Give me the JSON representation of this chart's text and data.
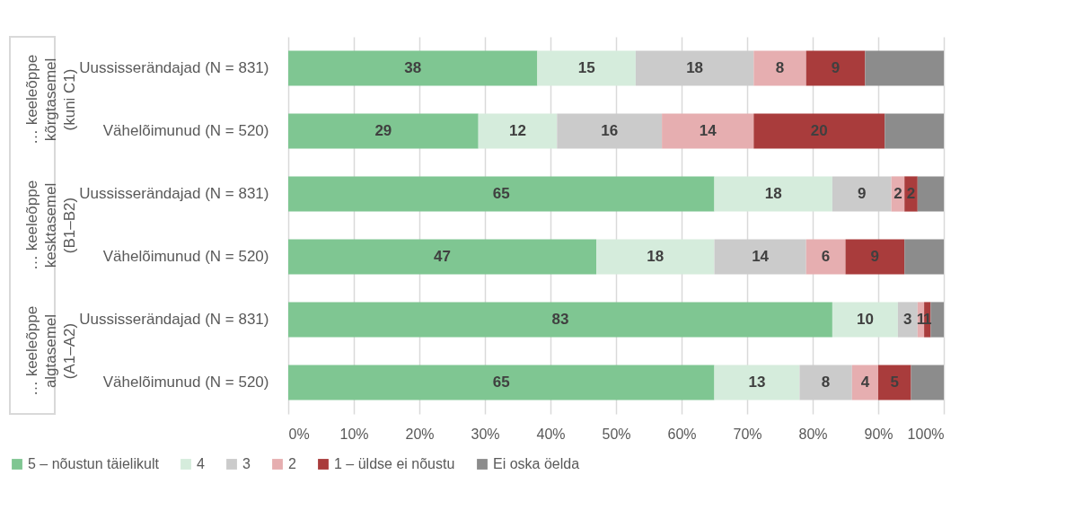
{
  "chart_data": {
    "type": "bar",
    "orientation": "horizontal",
    "stacked": true,
    "categories": [
      "Uussisserändajad (N = 831)",
      "Vähelõimunud (N = 520)",
      "Uussisserändajad (N = 831)",
      "Vähelõimunud (N = 520)",
      "Uussisserändajad (N = 831)",
      "Vähelõimunud (N = 520)"
    ],
    "annotations": [
      "… keeleõppe\nkõrgtasemel\n(kuni C1)",
      "… keeleõppe\nkesktasemel\n(B1–B2)",
      "… keeleõppe\nalgtasemel\n(A1–A2)"
    ],
    "series": [
      {
        "name": "5 – nõustun täielikult",
        "color": "#7fc692",
        "values": [
          38,
          29,
          65,
          47,
          83,
          65
        ],
        "value_labels": [
          "38",
          "29",
          "65",
          "47",
          "83",
          "65"
        ]
      },
      {
        "name": "4",
        "color": "#d5ecdc",
        "values": [
          15,
          12,
          18,
          18,
          10,
          13
        ],
        "value_labels": [
          "15",
          "12",
          "18",
          "18",
          "10",
          "13"
        ]
      },
      {
        "name": "3",
        "color": "#cbcbcb",
        "values": [
          18,
          16,
          9,
          14,
          3,
          8
        ],
        "value_labels": [
          "18",
          "16",
          "9",
          "14",
          "3",
          "8"
        ]
      },
      {
        "name": "2",
        "color": "#e6aeb0",
        "values": [
          8,
          14,
          2,
          6,
          1,
          4
        ],
        "value_labels": [
          "8",
          "14",
          "2",
          "6",
          "1",
          "4"
        ]
      },
      {
        "name": "1 – üldse ei nõustu",
        "color": "#a93c3c",
        "values": [
          9,
          20,
          2,
          9,
          1,
          5
        ],
        "value_labels": [
          "9",
          "20",
          "2",
          "9",
          "1",
          "5"
        ]
      },
      {
        "name": "Ei oska öelda",
        "color": "#8c8c8c",
        "values": [
          12,
          9,
          4,
          6,
          2,
          5
        ],
        "value_labels": [
          null,
          null,
          null,
          null,
          null,
          null
        ]
      }
    ],
    "xlim": [
      0,
      100
    ],
    "xticks": [
      {
        "value": 0,
        "label": "0%"
      },
      {
        "value": 10,
        "label": "10%"
      },
      {
        "value": 20,
        "label": "20%"
      },
      {
        "value": 30,
        "label": "30%"
      },
      {
        "value": 40,
        "label": "40%"
      },
      {
        "value": 50,
        "label": "50%"
      },
      {
        "value": 60,
        "label": "60%"
      },
      {
        "value": 70,
        "label": "70%"
      },
      {
        "value": 80,
        "label": "80%"
      },
      {
        "value": 90,
        "label": "90%"
      },
      {
        "value": 100,
        "label": "100%"
      }
    ],
    "grid": "x",
    "legend": "bottom"
  }
}
